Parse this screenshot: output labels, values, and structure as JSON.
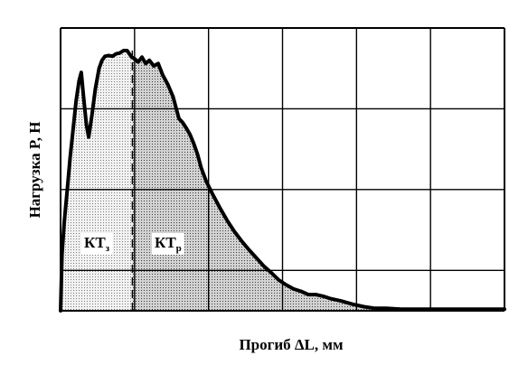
{
  "chart_data": {
    "type": "area",
    "title": "",
    "xlabel": "Прогиб ΔL, мм",
    "ylabel": "Нагрузка P, Н",
    "xlim": [
      0,
      6
    ],
    "ylim": [
      0,
      3.5
    ],
    "grid": true,
    "x_tick_labels": [],
    "y_tick_labels": [],
    "series": [
      {
        "type": "line",
        "x": [
          0.0,
          0.02,
          0.05,
          0.09,
          0.13,
          0.17,
          0.21,
          0.25,
          0.28,
          0.31,
          0.35,
          0.38,
          0.42,
          0.47,
          0.52,
          0.56,
          0.6,
          0.65,
          0.7,
          0.75,
          0.8,
          0.85,
          0.9,
          0.93,
          0.96,
          1.0,
          1.05,
          1.1,
          1.15,
          1.2,
          1.26,
          1.32,
          1.38,
          1.45,
          1.52,
          1.6,
          1.65,
          1.7,
          1.75,
          1.8,
          1.85,
          1.9,
          1.97,
          2.05,
          2.15,
          2.25,
          2.35,
          2.45,
          2.55,
          2.65,
          2.75,
          2.85,
          2.95,
          3.05,
          3.15,
          3.25,
          3.35,
          3.45,
          3.55,
          3.65,
          3.8,
          3.95,
          4.1,
          4.25,
          4.4,
          4.6,
          4.8,
          5.0,
          5.2,
          5.4,
          5.6,
          5.8,
          6.0
        ],
        "y": [
          0.0,
          0.7,
          1.1,
          1.5,
          1.9,
          2.25,
          2.6,
          2.85,
          2.95,
          2.65,
          2.3,
          2.15,
          2.4,
          2.75,
          3.0,
          3.1,
          3.15,
          3.16,
          3.15,
          3.18,
          3.19,
          3.22,
          3.22,
          3.18,
          3.14,
          3.12,
          3.08,
          3.14,
          3.06,
          3.1,
          3.03,
          3.06,
          2.92,
          2.8,
          2.65,
          2.38,
          2.33,
          2.26,
          2.18,
          2.07,
          1.94,
          1.77,
          1.6,
          1.45,
          1.28,
          1.12,
          0.98,
          0.86,
          0.75,
          0.65,
          0.55,
          0.47,
          0.38,
          0.32,
          0.27,
          0.24,
          0.2,
          0.2,
          0.18,
          0.15,
          0.12,
          0.08,
          0.05,
          0.03,
          0.03,
          0.02,
          0.02,
          0.02,
          0.02,
          0.02,
          0.02,
          0.02,
          0.02
        ]
      }
    ],
    "boundary_x": 0.97,
    "regions": [
      {
        "label_main": "КТ",
        "label_sub": "з",
        "fill": "dotted-light"
      },
      {
        "label_main": "КТ",
        "label_sub": "р",
        "fill": "dotted-dark"
      }
    ],
    "colors": {
      "line": "#000000",
      "grid": "#000000",
      "region_left_dot": "#7a7a7a",
      "region_right_dot": "#3c3c3c",
      "region_left_bg": "#f2f2f2",
      "region_right_bg": "#d2d2d2"
    }
  }
}
